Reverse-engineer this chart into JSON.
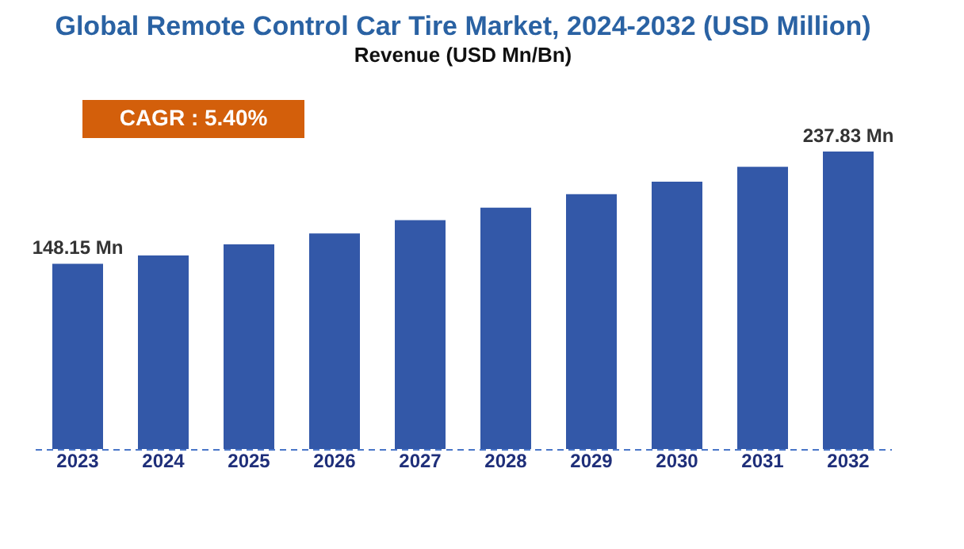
{
  "chart_data": {
    "type": "bar",
    "title": "Global Remote Control Car Tire Market, 2024-2032 (USD Million)",
    "subtitle": "Revenue (USD Mn/Bn)",
    "categories": [
      "2023",
      "2024",
      "2025",
      "2026",
      "2027",
      "2028",
      "2029",
      "2030",
      "2031",
      "2032"
    ],
    "values": [
      148.15,
      154.7,
      163.6,
      172.3,
      183.0,
      193.0,
      203.8,
      213.7,
      225.7,
      237.83
    ],
    "value_labels": [
      "148.15 Mn",
      null,
      null,
      null,
      null,
      null,
      null,
      null,
      null,
      "237.83 Mn"
    ],
    "color": "#3358a8",
    "annotations": [
      "CAGR : 5.40%"
    ],
    "grid": false
  }
}
